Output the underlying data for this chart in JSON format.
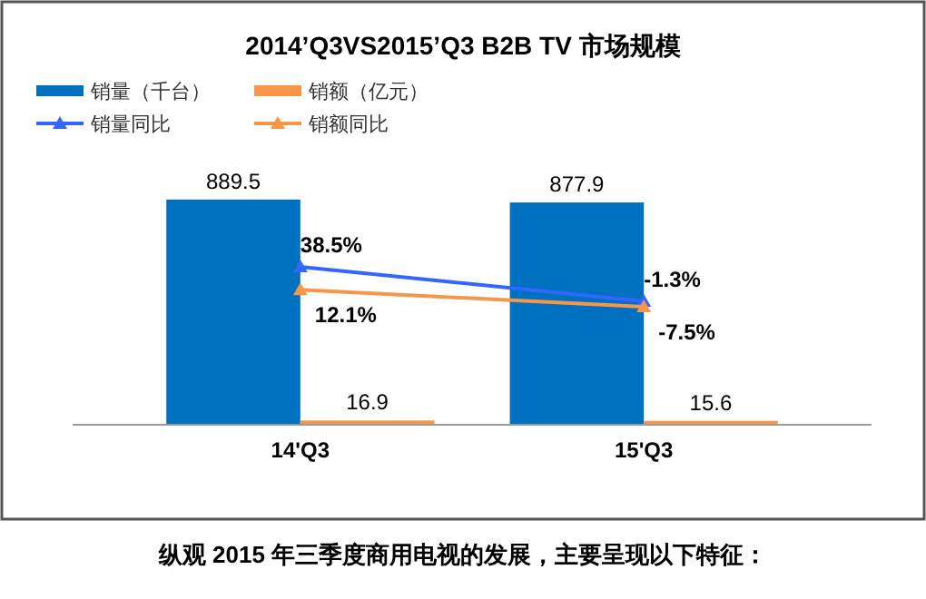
{
  "chart_data": {
    "type": "bar",
    "title": "2014’Q3VS2015’Q3 B2B TV 市场规模",
    "categories": [
      "14'Q3",
      "15'Q3"
    ],
    "series": [
      {
        "name": "销量（千台）",
        "color": "#0070c0",
        "values": [
          889.5,
          877.9
        ],
        "value_labels": [
          "889.5",
          "877.9"
        ]
      },
      {
        "name": "销额（亿元）",
        "color": "#f79646",
        "values": [
          16.9,
          15.6
        ],
        "value_labels": [
          "16.9",
          "15.6"
        ]
      },
      {
        "name": "销量同比",
        "type": "line",
        "axis": "y2",
        "marker": "triangle",
        "color": "#3366ff",
        "values": [
          38.5,
          -1.3
        ],
        "value_labels": [
          "38.5%",
          "-1.3%"
        ]
      },
      {
        "name": "销额同比",
        "type": "line",
        "axis": "y2",
        "marker": "triangle",
        "color": "#f79646",
        "values": [
          12.1,
          -7.5
        ],
        "value_labels": [
          "12.1%",
          "-7.5%"
        ]
      }
    ],
    "legend": "top left",
    "annotations": [
      "纵观 2015 年三季度商用电视的发展，主要呈现以下特征："
    ]
  }
}
